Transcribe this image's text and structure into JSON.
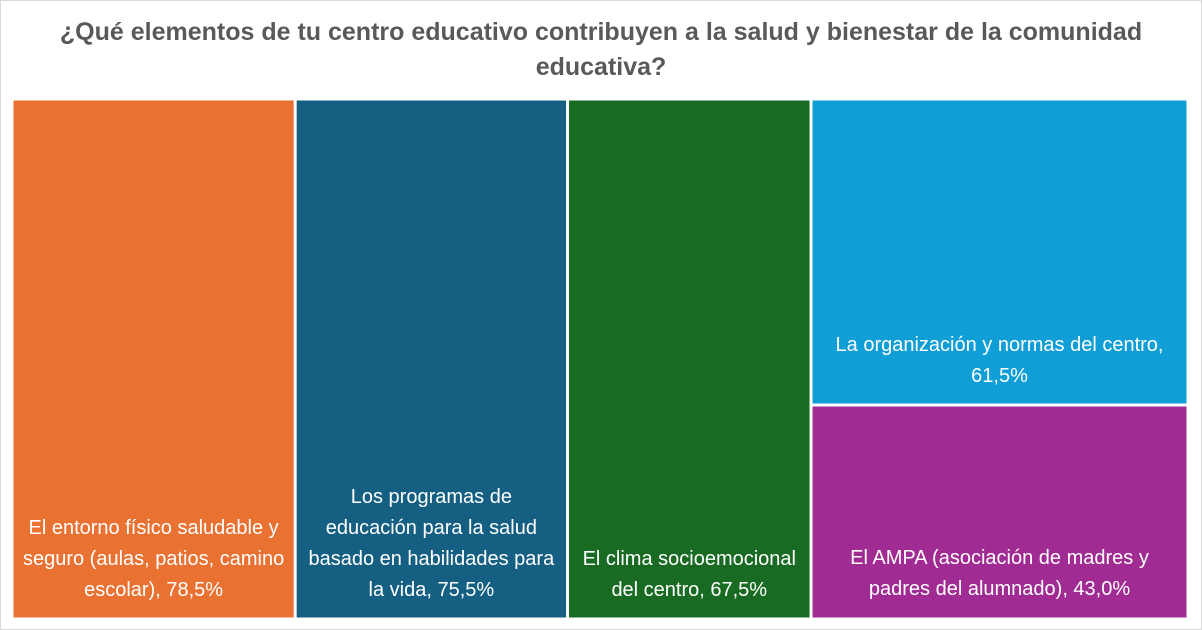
{
  "chart_data": {
    "type": "treemap",
    "title": "¿Qué elementos de tu centro educativo contribuyen a la salud y bienestar de la comunidad educativa?",
    "items": [
      {
        "label": "El entorno físico saludable y seguro (aulas, patios, camino escolar), 78,5%",
        "value": 78.5,
        "color": "#E97132"
      },
      {
        "label": "Los programas de educación para la salud basado en habilidades para la vida, 75,5%",
        "value": 75.5,
        "color": "#156082"
      },
      {
        "label": "El clima socioemocional del centro, 67,5%",
        "value": 67.5,
        "color": "#196B24"
      },
      {
        "label": "La organización y normas del centro, 61,5%",
        "value": 61.5,
        "color": "#0F9ED5"
      },
      {
        "label": "El AMPA (asociación de madres y padres del alumnado), 43,0%",
        "value": 43.0,
        "color": "#A02B93"
      }
    ]
  }
}
